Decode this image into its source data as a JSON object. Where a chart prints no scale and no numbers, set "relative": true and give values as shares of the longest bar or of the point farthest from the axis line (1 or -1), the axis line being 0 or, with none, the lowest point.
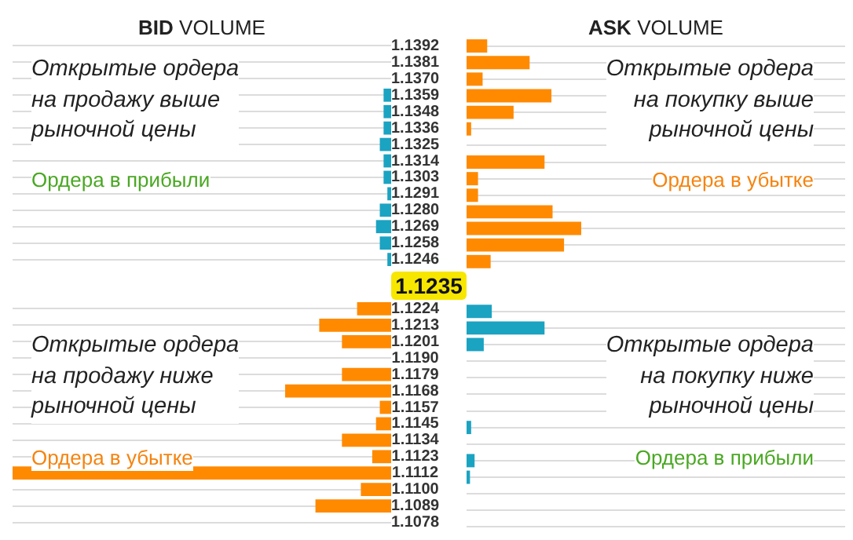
{
  "chart_data": [
    {
      "type": "bar",
      "orientation": "horizontal",
      "relative": true,
      "grid": "y",
      "title": "BID VOLUME",
      "categories": [
        "1.1392",
        "1.1381",
        "1.1370",
        "1.1359",
        "1.1348",
        "1.1336",
        "1.1325",
        "1.1314",
        "1.1303",
        "1.1291",
        "1.1280",
        "1.1269",
        "1.1258",
        "1.1246",
        null,
        null,
        "1.1224",
        "1.1213",
        "1.1201",
        "1.1190",
        "1.1179",
        "1.1168",
        "1.1157",
        "1.1145",
        "1.1134",
        "1.1123",
        "1.1112",
        "1.1100",
        "1.1089",
        "1.1078"
      ],
      "values": [
        0,
        0,
        0,
        0.02,
        0.02,
        0.02,
        0.03,
        0.02,
        0.02,
        0.01,
        0.03,
        0.04,
        0.03,
        0.01,
        null,
        null,
        0.09,
        0.19,
        0.13,
        0,
        0.13,
        0.28,
        0.03,
        0.04,
        0.13,
        0.05,
        1,
        0.08,
        0.2,
        0
      ],
      "colors": [
        "#1ba3c2",
        "#1ba3c2",
        "#1ba3c2",
        "#1ba3c2",
        "#1ba3c2",
        "#1ba3c2",
        "#1ba3c2",
        "#1ba3c2",
        "#1ba3c2",
        "#1ba3c2",
        "#1ba3c2",
        "#1ba3c2",
        "#1ba3c2",
        "#1ba3c2",
        null,
        null,
        "#ff8a00",
        "#ff8a00",
        "#ff8a00",
        "#ff8a00",
        "#ff8a00",
        "#ff8a00",
        "#ff8a00",
        "#ff8a00",
        "#ff8a00",
        "#ff8a00",
        "#ff8a00",
        "#ff8a00",
        "#ff8a00",
        "#ff8a00"
      ],
      "annotations": [
        "Открытые ордера\nна продажу выше\nрыночной цены",
        "Ордера в прибыли",
        "1.1235",
        "Открытые ордера\nна продажу ниже\nрыночной цены",
        "Ордера в убытке"
      ]
    },
    {
      "type": "bar",
      "orientation": "horizontal",
      "relative": true,
      "grid": "y",
      "tick_labels": false,
      "title": "ASK VOLUME",
      "categories": [
        "1.1392",
        "1.1381",
        "1.1370",
        "1.1359",
        "1.1348",
        "1.1336",
        "1.1325",
        "1.1314",
        "1.1303",
        "1.1291",
        "1.1280",
        "1.1269",
        "1.1258",
        "1.1246",
        null,
        null,
        "1.1224",
        "1.1213",
        "1.1201",
        "1.1190",
        "1.1179",
        "1.1168",
        "1.1157",
        "1.1145",
        "1.1134",
        "1.1123",
        "1.1112",
        "1.1100",
        "1.1089",
        "1.1078"
      ],
      "values": [
        0.18,
        0.55,
        0.14,
        0.74,
        0.41,
        0.04,
        0,
        0.68,
        0.1,
        0.1,
        0.75,
        1,
        0.85,
        0.21,
        null,
        null,
        0.22,
        0.68,
        0.15,
        0,
        0,
        0,
        0,
        0.04,
        0,
        0.07,
        0.03,
        0,
        0,
        0
      ],
      "colors": [
        "#ff8a00",
        "#ff8a00",
        "#ff8a00",
        "#ff8a00",
        "#ff8a00",
        "#ff8a00",
        "#ff8a00",
        "#ff8a00",
        "#ff8a00",
        "#ff8a00",
        "#ff8a00",
        "#ff8a00",
        "#ff8a00",
        "#ff8a00",
        null,
        null,
        "#1ba3c2",
        "#1ba3c2",
        "#1ba3c2",
        "#1ba3c2",
        "#1ba3c2",
        "#1ba3c2",
        "#1ba3c2",
        "#1ba3c2",
        "#1ba3c2",
        "#1ba3c2",
        "#1ba3c2",
        "#1ba3c2",
        "#1ba3c2",
        "#1ba3c2"
      ],
      "annotations": [
        "Открытые ордера\nна покупку выше\nрыночной цены",
        "Ордера в убытке",
        "Открытые ордера\nна покупку ниже\nрыночной цены",
        "Ордера в прибыли"
      ]
    }
  ]
}
